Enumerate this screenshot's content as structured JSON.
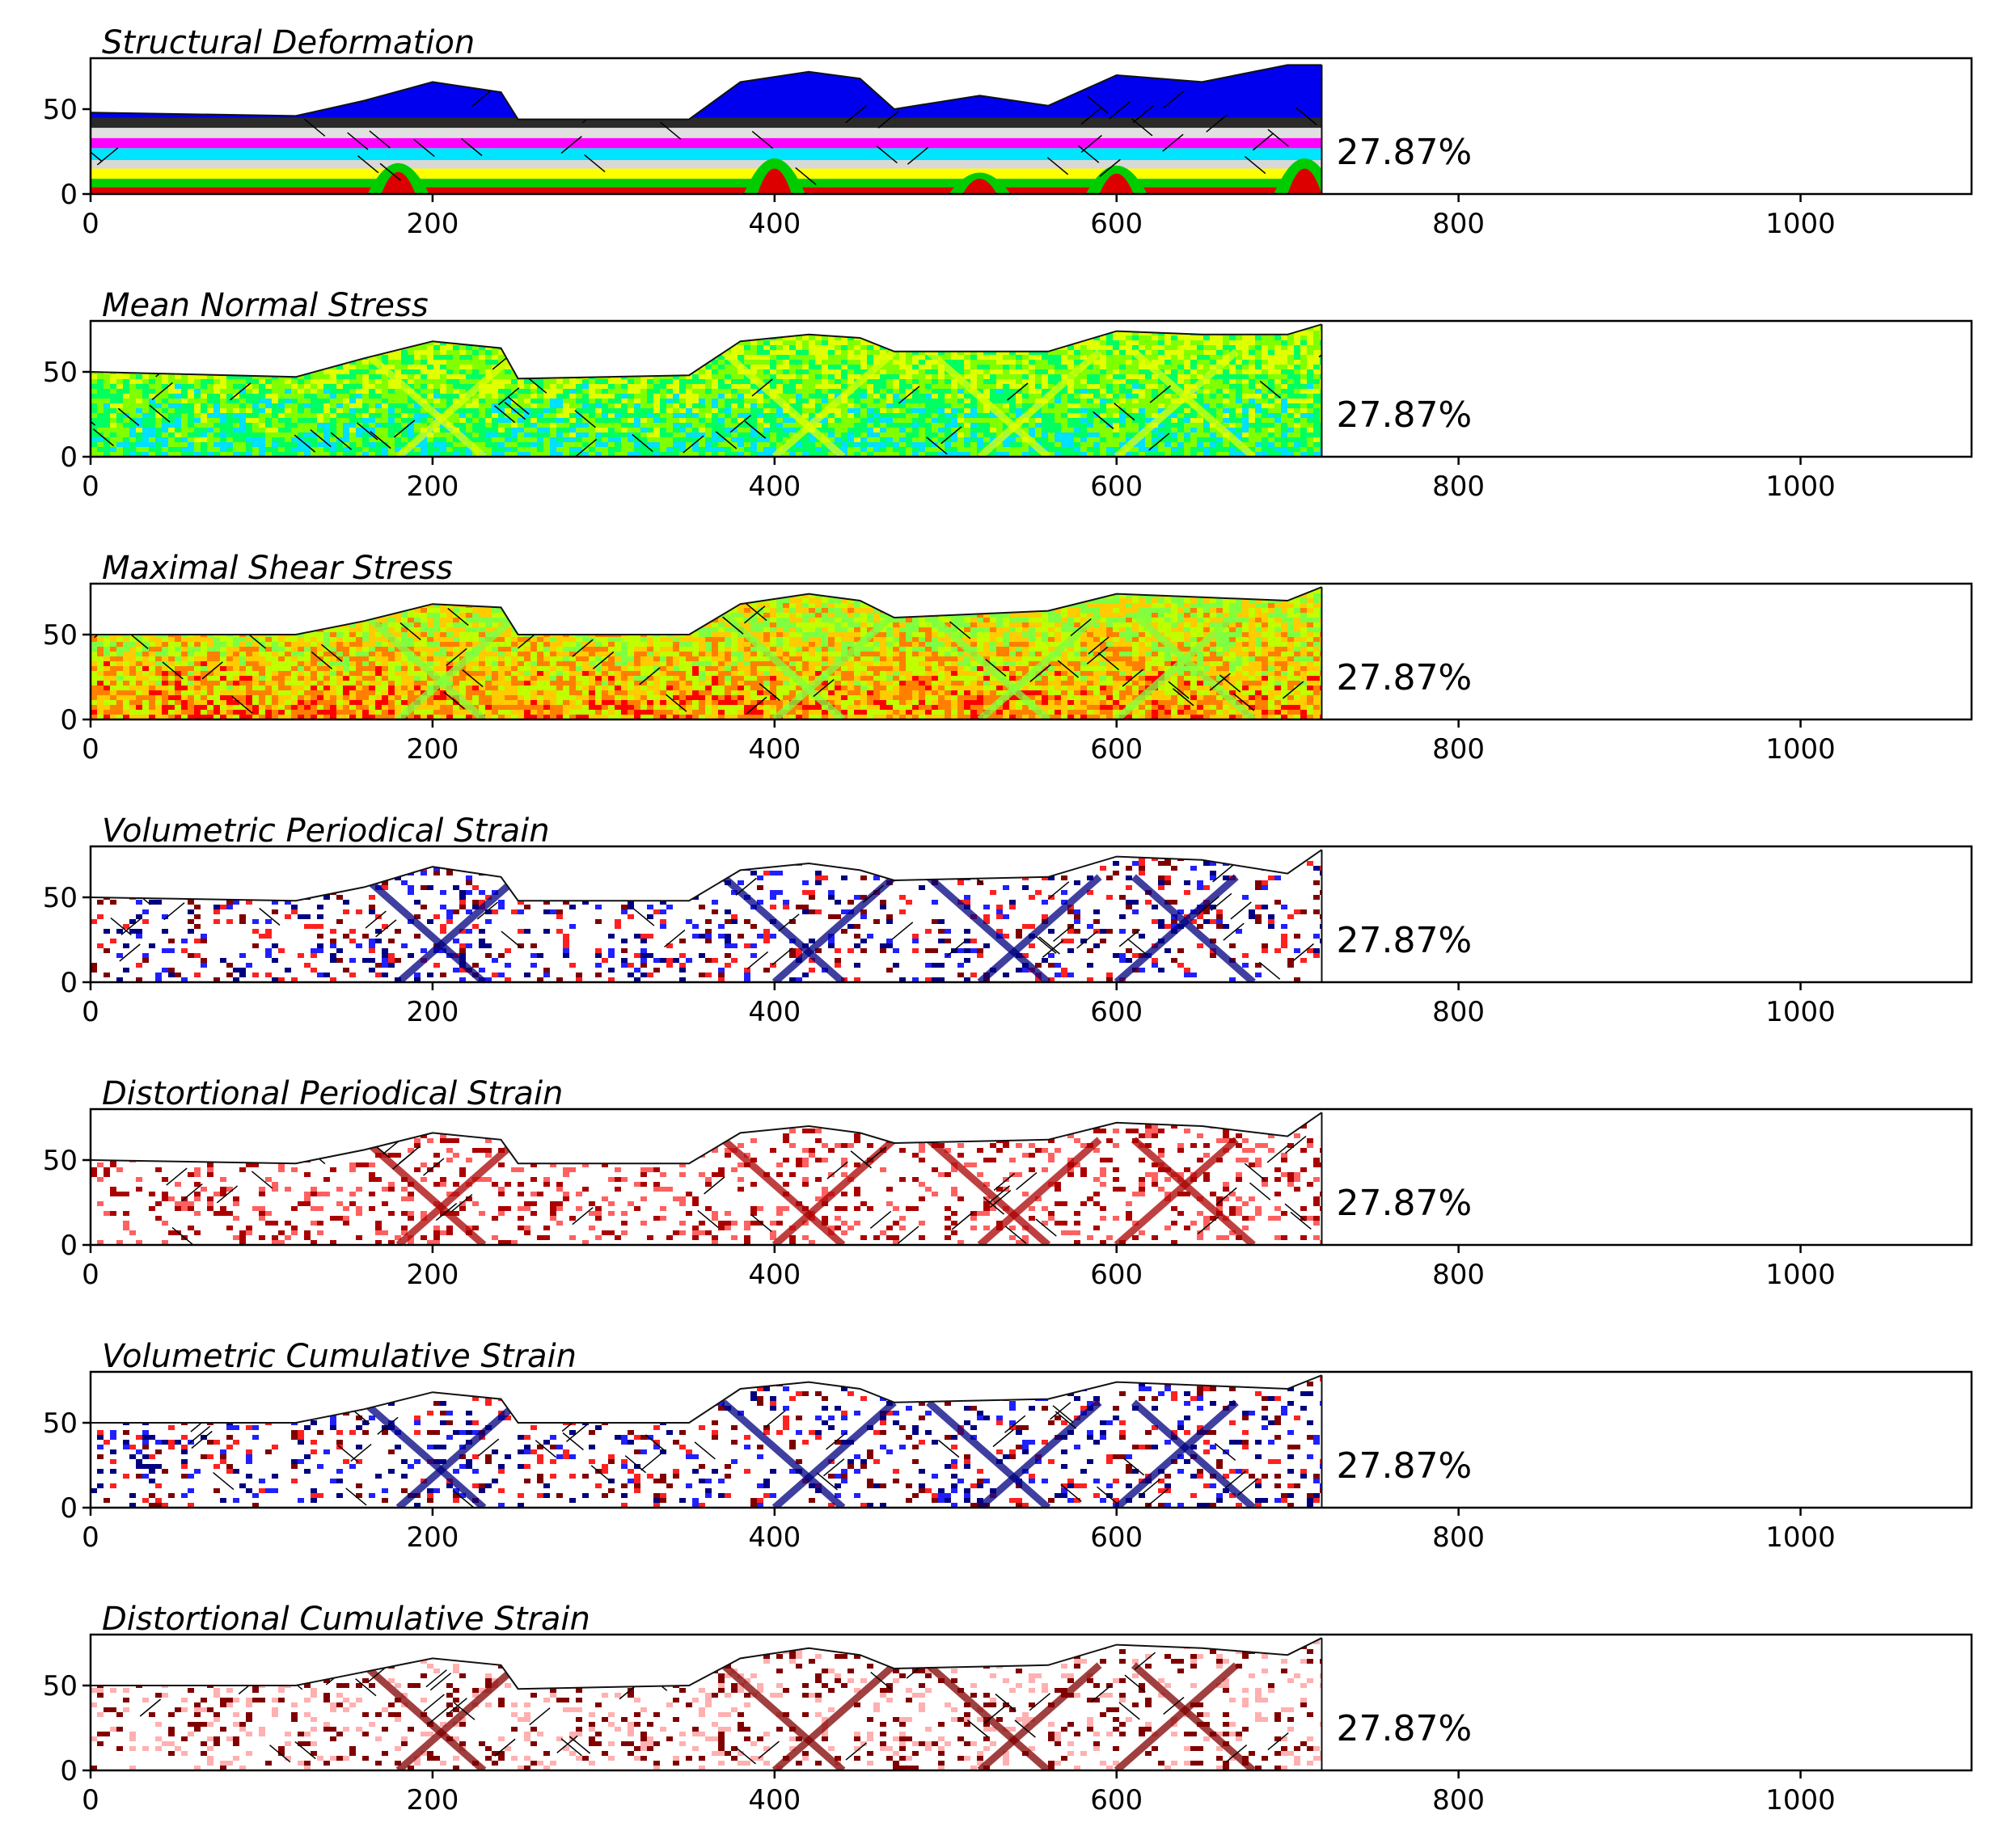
{
  "chart_data": [
    {
      "type": "heatmap",
      "title": "Structural Deformation",
      "annotation": "27.87%",
      "xlim": [
        0,
        1100
      ],
      "ylim": [
        0,
        80
      ],
      "xticks": [
        0,
        200,
        400,
        600,
        800,
        1000
      ],
      "yticks": [
        0,
        50
      ],
      "data_extent_x": [
        0,
        720
      ],
      "surface": [
        [
          0,
          48
        ],
        [
          120,
          46
        ],
        [
          160,
          55
        ],
        [
          200,
          66
        ],
        [
          240,
          60
        ],
        [
          250,
          44
        ],
        [
          350,
          44
        ],
        [
          380,
          66
        ],
        [
          420,
          72
        ],
        [
          450,
          68
        ],
        [
          470,
          50
        ],
        [
          520,
          58
        ],
        [
          560,
          52
        ],
        [
          600,
          70
        ],
        [
          650,
          66
        ],
        [
          700,
          76
        ],
        [
          720,
          76
        ]
      ],
      "layers": [
        {
          "color": "#dd0000",
          "from": 0,
          "to": 4
        },
        {
          "color": "#00cc00",
          "from": 4,
          "to": 9
        },
        {
          "color": "#ffff00",
          "from": 9,
          "to": 15
        },
        {
          "color": "#d8d8d8",
          "from": 15,
          "to": 20
        },
        {
          "color": "#00e5ff",
          "from": 20,
          "to": 27
        },
        {
          "color": "#ff00ff",
          "from": 27,
          "to": 33
        },
        {
          "color": "#e0e0e0",
          "from": 33,
          "to": 39
        },
        {
          "color": "#2a2a2a",
          "from": 39,
          "to": 45
        },
        {
          "color": "#0000ee",
          "from": 45,
          "to": 80
        }
      ]
    },
    {
      "type": "heatmap",
      "title": "Mean Normal Stress",
      "annotation": "27.87%",
      "xlim": [
        0,
        1100
      ],
      "ylim": [
        0,
        80
      ],
      "xticks": [
        0,
        200,
        400,
        600,
        800,
        1000
      ],
      "yticks": [
        0,
        50
      ],
      "data_extent_x": [
        0,
        720
      ],
      "surface": [
        [
          0,
          50
        ],
        [
          120,
          47
        ],
        [
          160,
          58
        ],
        [
          200,
          68
        ],
        [
          240,
          64
        ],
        [
          250,
          46
        ],
        [
          350,
          48
        ],
        [
          380,
          68
        ],
        [
          420,
          72
        ],
        [
          450,
          70
        ],
        [
          470,
          62
        ],
        [
          560,
          62
        ],
        [
          600,
          74
        ],
        [
          650,
          72
        ],
        [
          700,
          72
        ],
        [
          720,
          78
        ]
      ],
      "colors": [
        "#00e0ff",
        "#00ff60",
        "#80ff00",
        "#e0ff00"
      ]
    },
    {
      "type": "heatmap",
      "title": "Maximal Shear Stress",
      "annotation": "27.87%",
      "xlim": [
        0,
        1100
      ],
      "ylim": [
        0,
        80
      ],
      "xticks": [
        0,
        200,
        400,
        600,
        800,
        1000
      ],
      "yticks": [
        0,
        50
      ],
      "data_extent_x": [
        0,
        720
      ],
      "surface": [
        [
          0,
          50
        ],
        [
          120,
          50
        ],
        [
          160,
          58
        ],
        [
          200,
          68
        ],
        [
          240,
          66
        ],
        [
          250,
          50
        ],
        [
          350,
          50
        ],
        [
          380,
          68
        ],
        [
          420,
          74
        ],
        [
          450,
          70
        ],
        [
          470,
          60
        ],
        [
          560,
          64
        ],
        [
          600,
          74
        ],
        [
          650,
          72
        ],
        [
          700,
          70
        ],
        [
          720,
          78
        ]
      ],
      "colors": [
        "#ff0000",
        "#ff8000",
        "#ffcc00",
        "#c0ff00",
        "#80ff40"
      ]
    },
    {
      "type": "heatmap",
      "title": "Volumetric Periodical Strain",
      "annotation": "27.87%",
      "xlim": [
        0,
        1100
      ],
      "ylim": [
        0,
        80
      ],
      "xticks": [
        0,
        200,
        400,
        600,
        800,
        1000
      ],
      "yticks": [
        0,
        50
      ],
      "data_extent_x": [
        0,
        720
      ],
      "surface": [
        [
          0,
          50
        ],
        [
          120,
          48
        ],
        [
          160,
          56
        ],
        [
          200,
          68
        ],
        [
          240,
          62
        ],
        [
          250,
          48
        ],
        [
          350,
          48
        ],
        [
          380,
          66
        ],
        [
          420,
          70
        ],
        [
          450,
          66
        ],
        [
          470,
          60
        ],
        [
          560,
          62
        ],
        [
          600,
          74
        ],
        [
          650,
          72
        ],
        [
          700,
          64
        ],
        [
          720,
          78
        ]
      ],
      "colors": [
        "#ffffff",
        "#ff2020",
        "#2020ff",
        "#800000",
        "#000080"
      ]
    },
    {
      "type": "heatmap",
      "title": "Distortional Periodical Strain",
      "annotation": "27.87%",
      "xlim": [
        0,
        1100
      ],
      "ylim": [
        0,
        80
      ],
      "xticks": [
        0,
        200,
        400,
        600,
        800,
        1000
      ],
      "yticks": [
        0,
        50
      ],
      "data_extent_x": [
        0,
        720
      ],
      "surface": [
        [
          0,
          50
        ],
        [
          120,
          48
        ],
        [
          160,
          56
        ],
        [
          200,
          66
        ],
        [
          240,
          62
        ],
        [
          250,
          48
        ],
        [
          350,
          48
        ],
        [
          380,
          66
        ],
        [
          420,
          70
        ],
        [
          450,
          66
        ],
        [
          470,
          60
        ],
        [
          560,
          62
        ],
        [
          600,
          72
        ],
        [
          650,
          70
        ],
        [
          700,
          64
        ],
        [
          720,
          78
        ]
      ],
      "colors": [
        "#ffffff",
        "#ff6060",
        "#aa0000"
      ]
    },
    {
      "type": "heatmap",
      "title": "Volumetric Cumulative Strain",
      "annotation": "27.87%",
      "xlim": [
        0,
        1100
      ],
      "ylim": [
        0,
        80
      ],
      "xticks": [
        0,
        200,
        400,
        600,
        800,
        1000
      ],
      "yticks": [
        0,
        50
      ],
      "data_extent_x": [
        0,
        720
      ],
      "surface": [
        [
          0,
          50
        ],
        [
          120,
          50
        ],
        [
          160,
          58
        ],
        [
          200,
          68
        ],
        [
          240,
          64
        ],
        [
          250,
          50
        ],
        [
          350,
          50
        ],
        [
          380,
          70
        ],
        [
          420,
          74
        ],
        [
          450,
          70
        ],
        [
          470,
          62
        ],
        [
          560,
          64
        ],
        [
          600,
          74
        ],
        [
          650,
          72
        ],
        [
          700,
          70
        ],
        [
          720,
          78
        ]
      ],
      "colors": [
        "#ffffff",
        "#ff2020",
        "#2020ff",
        "#800000",
        "#000080"
      ]
    },
    {
      "type": "heatmap",
      "title": "Distortional Cumulative Strain",
      "annotation": "27.87%",
      "xlim": [
        0,
        1100
      ],
      "ylim": [
        0,
        80
      ],
      "xticks": [
        0,
        200,
        400,
        600,
        800,
        1000
      ],
      "yticks": [
        0,
        50
      ],
      "data_extent_x": [
        0,
        720
      ],
      "surface": [
        [
          0,
          50
        ],
        [
          120,
          50
        ],
        [
          160,
          58
        ],
        [
          200,
          66
        ],
        [
          240,
          62
        ],
        [
          250,
          48
        ],
        [
          350,
          50
        ],
        [
          380,
          66
        ],
        [
          420,
          72
        ],
        [
          450,
          68
        ],
        [
          470,
          60
        ],
        [
          560,
          62
        ],
        [
          600,
          74
        ],
        [
          650,
          72
        ],
        [
          700,
          68
        ],
        [
          720,
          78
        ]
      ],
      "colors": [
        "#ffffff",
        "#ffb0b0",
        "#800000"
      ]
    }
  ]
}
